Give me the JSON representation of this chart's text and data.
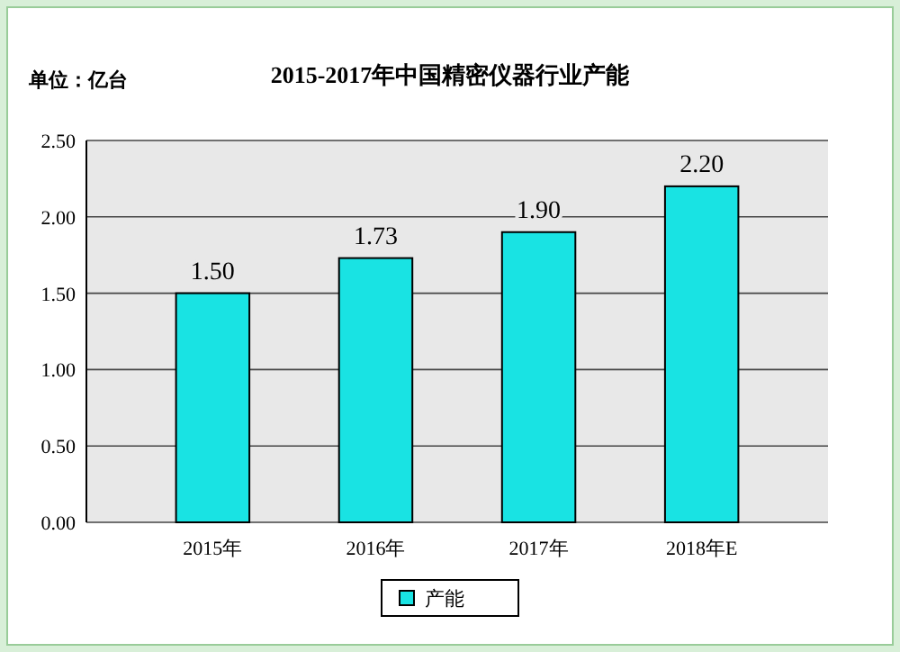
{
  "chart_data": {
    "type": "bar",
    "title": "2015-2017年中国精密仪器行业产能",
    "subtitle": "单位：亿台",
    "categories": [
      "2015年",
      "2016年",
      "2017年",
      "2018年E"
    ],
    "series": [
      {
        "name": "产能",
        "color": "#19e3e3",
        "values": [
          1.5,
          1.73,
          1.9,
          2.2
        ]
      }
    ],
    "value_labels": [
      "1.50",
      "1.73",
      "1.90",
      "2.20"
    ],
    "ylim": [
      0,
      2.5
    ],
    "yticks": [
      {
        "value": 0,
        "label": "0.00"
      },
      {
        "value": 0.5,
        "label": "0.50"
      },
      {
        "value": 1,
        "label": "1.00"
      },
      {
        "value": 1.5,
        "label": "1.50"
      },
      {
        "value": 2,
        "label": "2.00"
      },
      {
        "value": 2.5,
        "label": "2.50"
      }
    ],
    "grid": "y",
    "legend": "bottom"
  }
}
